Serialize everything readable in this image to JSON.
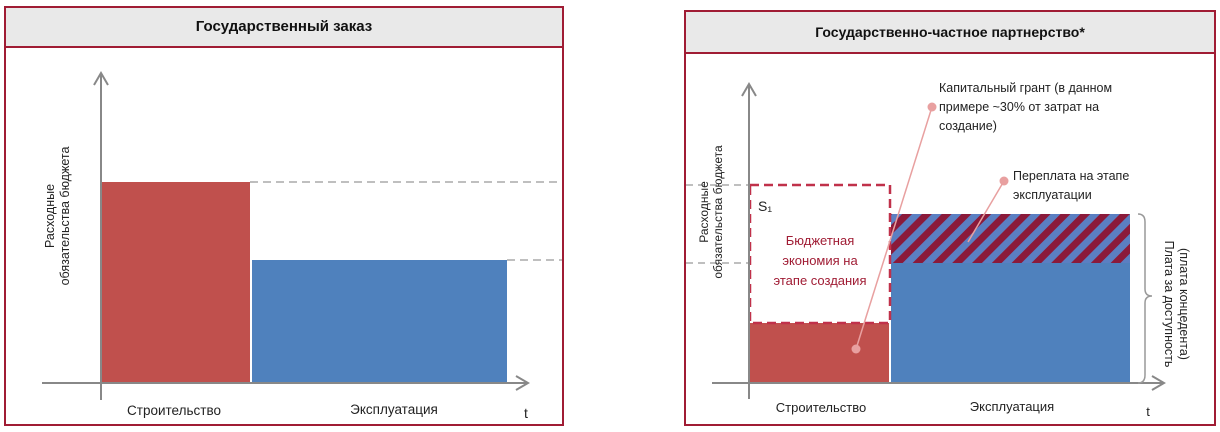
{
  "left": {
    "title": "Государственный заказ",
    "ylabel_line1": "Расходные",
    "ylabel_line2": "обязательства бюджета",
    "x_label_build": "Строительство",
    "x_label_ops": "Эксплуатация",
    "x_axis_t": "t"
  },
  "right": {
    "title": "Государственно-частное партнерство*",
    "ylabel_line1": "Расходные",
    "ylabel_line2": "обязательства бюджета",
    "s1_label": "S₁",
    "savings_line1": "Бюджетная",
    "savings_line2": "экономия на",
    "savings_line3": "этапе создания",
    "grant_line1": "Капитальный грант (в данном",
    "grant_line2": "примере ~30% от затрат на",
    "grant_line3": "создание)",
    "overpay_line1": "Переплата на этапе",
    "overpay_line2": "эксплуатации",
    "availability_line1": "Плата за доступность",
    "availability_line2": "(плата концедента)",
    "x_label_build": "Строительство",
    "x_label_ops": "Эксплуатация",
    "x_axis_t": "t"
  },
  "colors": {
    "border": "#a01c34",
    "build_bar": "#c0504d",
    "ops_bar": "#4f81bd",
    "hatch_red": "#8b1a3a",
    "hatch_blue": "#5b7fc2",
    "dashed_box": "#c0314a",
    "savings_text": "#a01c34",
    "marker": "#e8a0a0",
    "axis": "#888888"
  }
}
